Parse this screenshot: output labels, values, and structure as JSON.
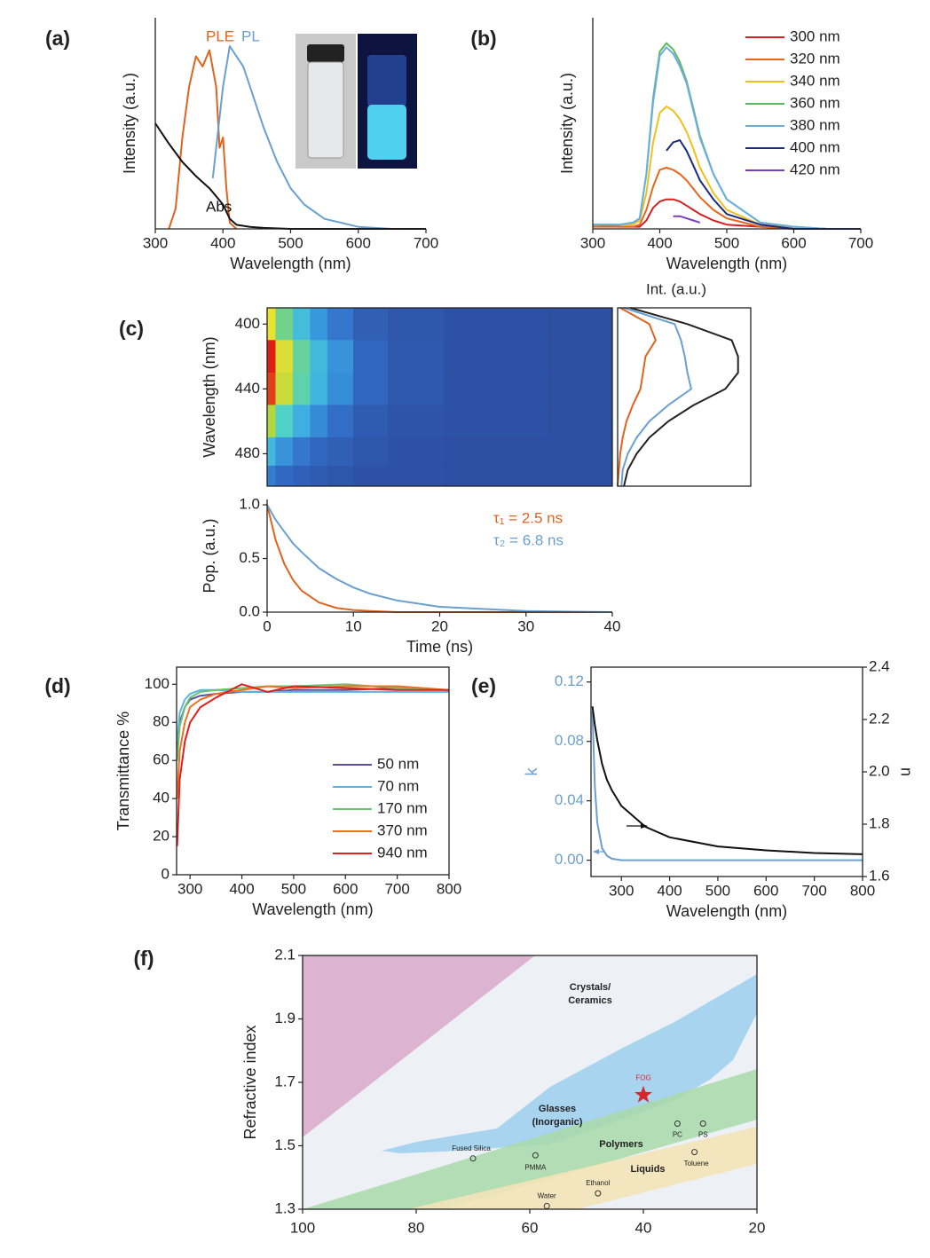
{
  "chart_data": [
    {
      "type": "line",
      "panel_label": "(a)",
      "xlabel": "Wavelength (nm)",
      "ylabel": "Intensity (a.u.)",
      "xlim": [
        300,
        700
      ],
      "xticks": [
        300,
        400,
        500,
        600,
        700
      ],
      "ylim": [
        0,
        1.04
      ],
      "series": [
        {
          "name": "PLE",
          "color": "#e0631e",
          "x": [
            320,
            330,
            340,
            350,
            360,
            370,
            380,
            390,
            395,
            400,
            405,
            410,
            420
          ],
          "values": [
            0,
            0.1,
            0.45,
            0.7,
            0.85,
            0.8,
            0.88,
            0.7,
            0.4,
            0.45,
            0.2,
            0.03,
            0
          ]
        },
        {
          "name": "PL",
          "color": "#6a9fd0",
          "x": [
            385,
            400,
            410,
            420,
            430,
            440,
            460,
            480,
            500,
            520,
            550,
            600,
            650,
            700
          ],
          "values": [
            0.25,
            0.7,
            0.9,
            0.85,
            0.8,
            0.7,
            0.5,
            0.33,
            0.2,
            0.12,
            0.05,
            0.01,
            0,
            0
          ]
        },
        {
          "name": "Abs",
          "color": "#111111",
          "x": [
            300,
            320,
            340,
            360,
            380,
            400,
            410,
            420,
            440,
            460,
            500,
            600,
            700
          ],
          "values": [
            0.52,
            0.42,
            0.33,
            0.26,
            0.2,
            0.12,
            0.05,
            0.02,
            0.01,
            0.005,
            0,
            0,
            0
          ]
        }
      ]
    },
    {
      "type": "line",
      "panel_label": "(b)",
      "xlabel": "Wavelength (nm)",
      "ylabel": "Intensity (a.u.)",
      "xlim": [
        300,
        700
      ],
      "xticks": [
        300,
        400,
        500,
        600,
        700
      ],
      "ylim": [
        0,
        1
      ],
      "x": [
        300,
        340,
        360,
        370,
        380,
        390,
        400,
        410,
        420,
        430,
        440,
        450,
        460,
        480,
        500,
        550,
        600,
        650,
        700
      ],
      "series": [
        {
          "name": "300 nm",
          "color": "#d62020",
          "values": [
            0.02,
            0.01,
            0.01,
            0.01,
            0.04,
            0.1,
            0.13,
            0.14,
            0.14,
            0.13,
            0.11,
            0.09,
            0.07,
            0.04,
            0.02,
            0.01,
            0,
            0,
            0
          ]
        },
        {
          "name": "320 nm",
          "color": "#e8661c",
          "values": [
            0.01,
            0.01,
            0.01,
            0.02,
            0.09,
            0.2,
            0.28,
            0.29,
            0.28,
            0.26,
            0.23,
            0.19,
            0.15,
            0.09,
            0.05,
            0.01,
            0,
            0,
            0
          ]
        },
        {
          "name": "340 nm",
          "color": "#f0c020",
          "values": [
            0.02,
            0.02,
            0.02,
            0.04,
            0.17,
            0.41,
            0.55,
            0.58,
            0.56,
            0.52,
            0.46,
            0.38,
            0.29,
            0.17,
            0.09,
            0.02,
            0.01,
            0,
            0
          ]
        },
        {
          "name": "360 nm",
          "color": "#5cb85c",
          "values": [
            0.02,
            0.02,
            0.03,
            0.05,
            0.26,
            0.62,
            0.84,
            0.88,
            0.85,
            0.79,
            0.7,
            0.57,
            0.44,
            0.26,
            0.14,
            0.03,
            0.01,
            0,
            0
          ]
        },
        {
          "name": "380 nm",
          "color": "#6aaee0",
          "values": [
            0.02,
            0.02,
            0.03,
            0.05,
            0.26,
            0.6,
            0.82,
            0.86,
            0.83,
            0.77,
            0.69,
            0.56,
            0.43,
            0.26,
            0.14,
            0.03,
            0.01,
            0,
            0
          ]
        },
        {
          "name": "400 nm",
          "color": "#1a2a80",
          "values": [
            null,
            null,
            null,
            null,
            null,
            null,
            null,
            0.37,
            0.41,
            0.42,
            0.37,
            0.3,
            0.23,
            0.14,
            0.07,
            0.02,
            0,
            0,
            0
          ]
        },
        {
          "name": "420 nm",
          "color": "#7a3fbf",
          "values": [
            null,
            null,
            null,
            null,
            null,
            null,
            null,
            null,
            0.06,
            0.06,
            0.05,
            0.04,
            0.03,
            null,
            null,
            null,
            null,
            null,
            null
          ]
        }
      ]
    },
    {
      "type": "heatmap",
      "panel_label": "(c)",
      "ylabel": "Wavelength (nm)",
      "x": [
        0,
        2,
        4,
        6,
        8,
        12,
        16,
        25,
        40
      ],
      "y": [
        400,
        420,
        440,
        460,
        480,
        495
      ],
      "z": [
        [
          0.7,
          0.47,
          0.32,
          0.21,
          0.14,
          0.06,
          0.03,
          0.01,
          0
        ],
        [
          1,
          0.67,
          0.45,
          0.3,
          0.2,
          0.09,
          0.04,
          0.01,
          0
        ],
        [
          0.95,
          0.64,
          0.43,
          0.29,
          0.19,
          0.09,
          0.04,
          0.01,
          0
        ],
        [
          0.6,
          0.4,
          0.27,
          0.18,
          0.12,
          0.05,
          0.02,
          0.01,
          0
        ],
        [
          0.3,
          0.2,
          0.14,
          0.09,
          0.06,
          0.03,
          0.01,
          0,
          0
        ],
        [
          0.15,
          0.1,
          0.07,
          0.05,
          0.03,
          0.01,
          0.01,
          0,
          0
        ]
      ],
      "xlim": [
        0,
        40
      ],
      "ylim": [
        500,
        390
      ],
      "yticks": [
        400,
        440,
        480
      ]
    },
    {
      "type": "line",
      "swap_axes": true,
      "xlabel": "Int. (a.u.)",
      "x": [
        390,
        400,
        410,
        420,
        430,
        440,
        450,
        460,
        470,
        480,
        490,
        500
      ],
      "xlim": [
        500,
        390
      ],
      "ylim": [
        0,
        1.05
      ],
      "series": [
        {
          "color": "#e0631e",
          "values": [
            0.02,
            0.25,
            0.3,
            0.22,
            0.2,
            0.18,
            0.12,
            0.07,
            0.04,
            0.02,
            0.01,
            0
          ]
        },
        {
          "color": "#6a9fd0",
          "values": [
            0.05,
            0.45,
            0.5,
            0.53,
            0.55,
            0.58,
            0.4,
            0.25,
            0.15,
            0.08,
            0.04,
            0.03
          ]
        },
        {
          "color": "#222222",
          "values": [
            0.1,
            0.55,
            0.9,
            0.95,
            0.95,
            0.85,
            0.6,
            0.4,
            0.25,
            0.15,
            0.08,
            0.05
          ]
        }
      ]
    },
    {
      "type": "line",
      "xlabel": "Time (ns)",
      "ylabel": "Pop. (a.u.)",
      "x": [
        0,
        1,
        2,
        3,
        4,
        6,
        8,
        10,
        12,
        15,
        20,
        25,
        30,
        40
      ],
      "xlim": [
        0,
        40
      ],
      "xticks": [
        0,
        10,
        20,
        30,
        40
      ],
      "ylim": [
        0,
        1.05
      ],
      "yticks": [
        {
          "value": 0,
          "label": "0.0"
        },
        0.5,
        {
          "value": 1,
          "label": "1.0"
        }
      ],
      "series": [
        {
          "name": "τ₁ = 2.5 ns",
          "color": "#e0631e",
          "values": [
            1,
            0.67,
            0.45,
            0.3,
            0.2,
            0.09,
            0.04,
            0.02,
            0.01,
            0,
            0,
            0,
            0,
            0
          ]
        },
        {
          "name": "τ₂ = 6.8 ns",
          "color": "#6a9fd0",
          "values": [
            1,
            0.86,
            0.75,
            0.64,
            0.56,
            0.41,
            0.31,
            0.23,
            0.17,
            0.11,
            0.05,
            0.03,
            0.01,
            0
          ]
        }
      ]
    },
    {
      "type": "line",
      "panel_label": "(d)",
      "xlabel": "Wavelength (nm)",
      "ylabel": "Transmittance %",
      "x": [
        275,
        280,
        290,
        300,
        320,
        350,
        400,
        450,
        500,
        600,
        700,
        800
      ],
      "xlim": [
        274,
        800
      ],
      "xticks": [
        300,
        400,
        500,
        600,
        700,
        800
      ],
      "ylim": [
        0,
        109
      ],
      "yticks": [
        0,
        20,
        40,
        60,
        80,
        100
      ],
      "series": [
        {
          "name": "50 nm",
          "color": "#5a4fa0",
          "values": [
            65,
            80,
            88,
            92,
            94,
            95,
            96,
            96,
            97,
            97,
            98,
            97
          ]
        },
        {
          "name": "70 nm",
          "color": "#5ab4e0",
          "values": [
            70,
            85,
            92,
            95,
            97,
            97,
            96,
            96,
            96,
            96,
            96,
            96
          ]
        },
        {
          "name": "170 nm",
          "color": "#6cc070",
          "values": [
            60,
            78,
            88,
            93,
            96,
            97,
            98,
            99,
            99,
            100,
            98,
            97
          ]
        },
        {
          "name": "370 nm",
          "color": "#f07020",
          "values": [
            40,
            65,
            80,
            88,
            92,
            95,
            97,
            99,
            98,
            99,
            99,
            97
          ]
        },
        {
          "name": "940 nm",
          "color": "#e02020",
          "values": [
            15,
            50,
            70,
            80,
            88,
            93,
            100,
            96,
            99,
            98,
            97,
            97
          ]
        }
      ]
    },
    {
      "type": "line",
      "panel_label": "(e)",
      "xlabel": "Wavelength (nm)",
      "ylabel": "k",
      "y2label": "n",
      "x": [
        240,
        245,
        250,
        260,
        270,
        280,
        300,
        350,
        400,
        500,
        600,
        700,
        800
      ],
      "xlim": [
        237,
        800
      ],
      "xticks": [
        300,
        400,
        500,
        600,
        700,
        800
      ],
      "ylim": [
        -0.011,
        0.13
      ],
      "yticks": [
        {
          "value": 0,
          "label": "0.00"
        },
        0.04,
        0.08,
        0.12
      ],
      "y2lim": [
        1.6,
        2.4
      ],
      "y2ticks": [
        1.6,
        1.8,
        {
          "value": 2,
          "label": "2.0"
        },
        2.2,
        2.4
      ],
      "series": [
        {
          "color": "#6a9fd0",
          "values": [
            0.1,
            0.05,
            0.025,
            0.008,
            0.003,
            0.001,
            0,
            0,
            0,
            0,
            0,
            0,
            0
          ]
        },
        {
          "color": "#111111",
          "axis": "y2",
          "values": [
            2.25,
            2.18,
            2.12,
            2.03,
            1.97,
            1.93,
            1.87,
            1.79,
            1.75,
            1.715,
            1.7,
            1.69,
            1.685
          ]
        }
      ]
    },
    {
      "type": "scatter",
      "panel_label": "(f)",
      "ylabel": "Refractive index",
      "xlim": [
        100,
        20
      ],
      "xticks": [
        100,
        80,
        60,
        40,
        20
      ],
      "ylim": [
        1.3,
        2.1
      ],
      "yticks": [
        1.3,
        1.5,
        1.7,
        1.9,
        2.1
      ],
      "region_labels": [
        [
          "Crystals/",
          "Ceramics"
        ],
        [
          "Glasses",
          "(Inorganic)"
        ],
        [
          "Polymers"
        ],
        [
          "Liquids"
        ]
      ],
      "points": [
        {
          "label": "Fused Silica",
          "x": 70,
          "y": 1.46
        },
        {
          "label": "PMMA",
          "x": 59,
          "y": 1.47
        },
        {
          "label": "Water",
          "x": 57,
          "y": 1.31
        },
        {
          "label": "Ethanol",
          "x": 48,
          "y": 1.35
        },
        {
          "label": "PC",
          "x": 34,
          "y": 1.57
        },
        {
          "label": "PS",
          "x": 29.5,
          "y": 1.57
        },
        {
          "label": "Toluene",
          "x": 31,
          "y": 1.48
        },
        {
          "label": "FOG",
          "x": 40,
          "y": 1.66,
          "marker": "star",
          "color": "#d9262a"
        }
      ]
    }
  ]
}
